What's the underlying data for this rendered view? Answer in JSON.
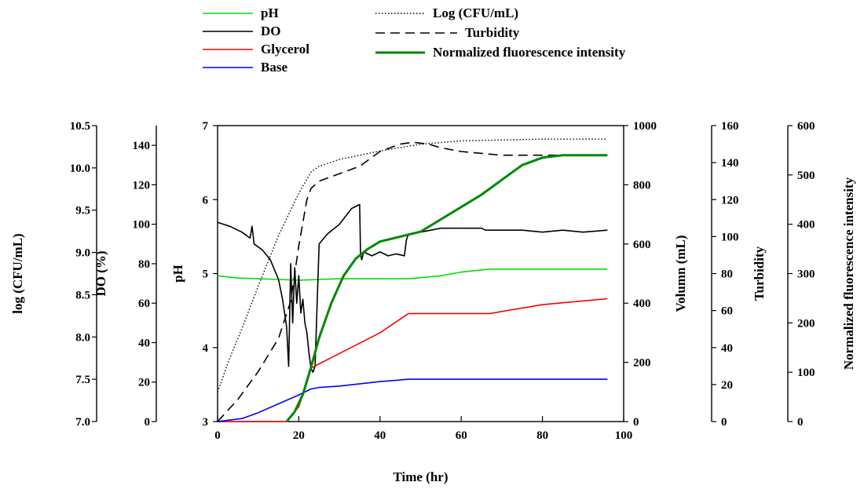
{
  "chart_data": {
    "type": "line",
    "x_axis": {
      "label": "Time (hr)",
      "min": 0,
      "max": 100,
      "ticks": [
        "0",
        "20",
        "40",
        "60",
        "80",
        "100"
      ]
    },
    "axes": [
      {
        "id": "logcfu",
        "label": "log (CFU/mL)",
        "min": 7.0,
        "max": 10.5,
        "ticks": [
          "7.0",
          "7.5",
          "8.0",
          "8.5",
          "9.0",
          "9.5",
          "10.0",
          "10.5"
        ]
      },
      {
        "id": "do",
        "label": "DO (%)",
        "min": 0,
        "max": 150,
        "ticks": [
          "0",
          "20",
          "40",
          "60",
          "80",
          "100",
          "120",
          "140"
        ]
      },
      {
        "id": "ph",
        "label": "pH",
        "min": 3,
        "max": 7,
        "ticks": [
          "3",
          "4",
          "5",
          "6",
          "7"
        ]
      },
      {
        "id": "volume",
        "label": "Volumn (mL)",
        "min": 0,
        "max": 1000,
        "ticks": [
          "0",
          "200",
          "400",
          "600",
          "800",
          "1000"
        ]
      },
      {
        "id": "turbidity",
        "label": "Turbidity",
        "min": 0,
        "max": 160,
        "ticks": [
          "0",
          "20",
          "40",
          "60",
          "80",
          "100",
          "120",
          "140",
          "160"
        ]
      },
      {
        "id": "fluor",
        "label": "Normalized fluorescence intensity",
        "min": 0,
        "max": 600,
        "ticks": [
          "0",
          "100",
          "200",
          "300",
          "400",
          "500",
          "600"
        ]
      }
    ],
    "series": [
      {
        "name": "pH",
        "axis": "ph",
        "color": "#00e000",
        "dash": "solid",
        "x": [
          0,
          5,
          10,
          15,
          20,
          25,
          30,
          40,
          47,
          55,
          60,
          67,
          80,
          96
        ],
        "y": [
          4.97,
          4.94,
          4.93,
          4.92,
          4.91,
          4.92,
          4.93,
          4.93,
          4.93,
          4.97,
          5.02,
          5.06,
          5.06,
          5.06
        ]
      },
      {
        "name": "DO",
        "axis": "do",
        "color": "#000000",
        "dash": "solid",
        "x": [
          0,
          3,
          6,
          8,
          8.5,
          9,
          11,
          13,
          15,
          16,
          17,
          17.5,
          18,
          18.5,
          19,
          19.5,
          20,
          20.5,
          21,
          21.5,
          22,
          22.5,
          23,
          23.5,
          24,
          25,
          27,
          30,
          33,
          34,
          35,
          35.2,
          35.5,
          36,
          38,
          40,
          42,
          44,
          46,
          46.5,
          47,
          50,
          55,
          60,
          65,
          66,
          70,
          75,
          80,
          85,
          90,
          96
        ],
        "y": [
          101,
          99,
          96,
          93,
          99,
          90,
          87,
          82,
          72,
          62,
          48,
          28,
          80,
          50,
          78,
          60,
          74,
          55,
          62,
          50,
          45,
          35,
          27,
          25,
          28,
          90,
          95,
          100,
          108,
          109,
          110,
          85,
          82,
          86,
          84,
          86,
          84,
          85,
          84,
          92,
          95,
          96,
          98,
          98,
          98,
          97,
          97,
          97,
          96,
          97,
          96,
          97
        ]
      },
      {
        "name": "Glycerol",
        "axis": "volume",
        "color": "#ff0000",
        "dash": "solid",
        "x": [
          0,
          5,
          10,
          15,
          17,
          20,
          22,
          23,
          25,
          30,
          40,
          47,
          55,
          67,
          80,
          96
        ],
        "y": [
          0,
          0,
          0,
          0,
          0,
          50,
          130,
          180,
          195,
          230,
          300,
          365,
          365,
          365,
          395,
          415
        ]
      },
      {
        "name": "Base",
        "axis": "volume",
        "color": "#0000ff",
        "dash": "solid",
        "x": [
          0,
          3,
          6,
          10,
          15,
          20,
          23,
          25,
          30,
          40,
          47,
          55,
          67,
          80,
          96
        ],
        "y": [
          0,
          5,
          10,
          30,
          60,
          90,
          110,
          115,
          120,
          135,
          143,
          143,
          143,
          143,
          143
        ]
      },
      {
        "name": "Log (CFU/mL)",
        "axis": "logcfu",
        "color": "#000000",
        "dash": "dotted",
        "x": [
          0,
          3,
          6,
          10,
          15,
          20,
          23,
          25,
          30,
          40,
          50,
          60,
          70,
          80,
          96
        ],
        "y": [
          7.35,
          7.75,
          8.1,
          8.6,
          9.2,
          9.7,
          9.95,
          10.02,
          10.1,
          10.2,
          10.28,
          10.32,
          10.33,
          10.34,
          10.34
        ]
      },
      {
        "name": "Turbidity",
        "axis": "turbidity",
        "color": "#000000",
        "dash": "dashed",
        "x": [
          0,
          5,
          10,
          15,
          18,
          20,
          22,
          23,
          25,
          30,
          35,
          40,
          45,
          48,
          52,
          55,
          60,
          70,
          80,
          96
        ],
        "y": [
          0,
          12,
          27,
          45,
          65,
          95,
          120,
          126,
          130,
          134,
          138,
          146,
          150,
          151,
          150,
          148,
          146,
          144,
          144,
          144
        ]
      },
      {
        "name": "Normalized fluorescence intensity",
        "axis": "fluor",
        "color": "#008800",
        "dash": "solid",
        "x": [
          17,
          19,
          21,
          23,
          25,
          28,
          31,
          34,
          37,
          40,
          45,
          50,
          55,
          60,
          65,
          70,
          75,
          80,
          85,
          90,
          96
        ],
        "y": [
          0,
          20,
          55,
          110,
          170,
          240,
          295,
          330,
          350,
          365,
          375,
          385,
          410,
          435,
          460,
          490,
          520,
          535,
          540,
          540,
          540
        ]
      }
    ],
    "legend": {
      "left": [
        {
          "name": "pH",
          "color": "#00e000",
          "dash": "solid"
        },
        {
          "name": "DO",
          "color": "#000000",
          "dash": "solid"
        },
        {
          "name": "Glycerol",
          "color": "#ff0000",
          "dash": "solid"
        },
        {
          "name": "Base",
          "color": "#0000ff",
          "dash": "solid"
        }
      ],
      "right": [
        {
          "name": "Log (CFU/mL)",
          "color": "#000000",
          "dash": "dotted"
        },
        {
          "name": "Turbidity",
          "color": "#000000",
          "dash": "dashed"
        },
        {
          "name": "Normalized fluorescence intensity",
          "color": "#008800",
          "dash": "solid"
        }
      ]
    },
    "grid": false
  }
}
